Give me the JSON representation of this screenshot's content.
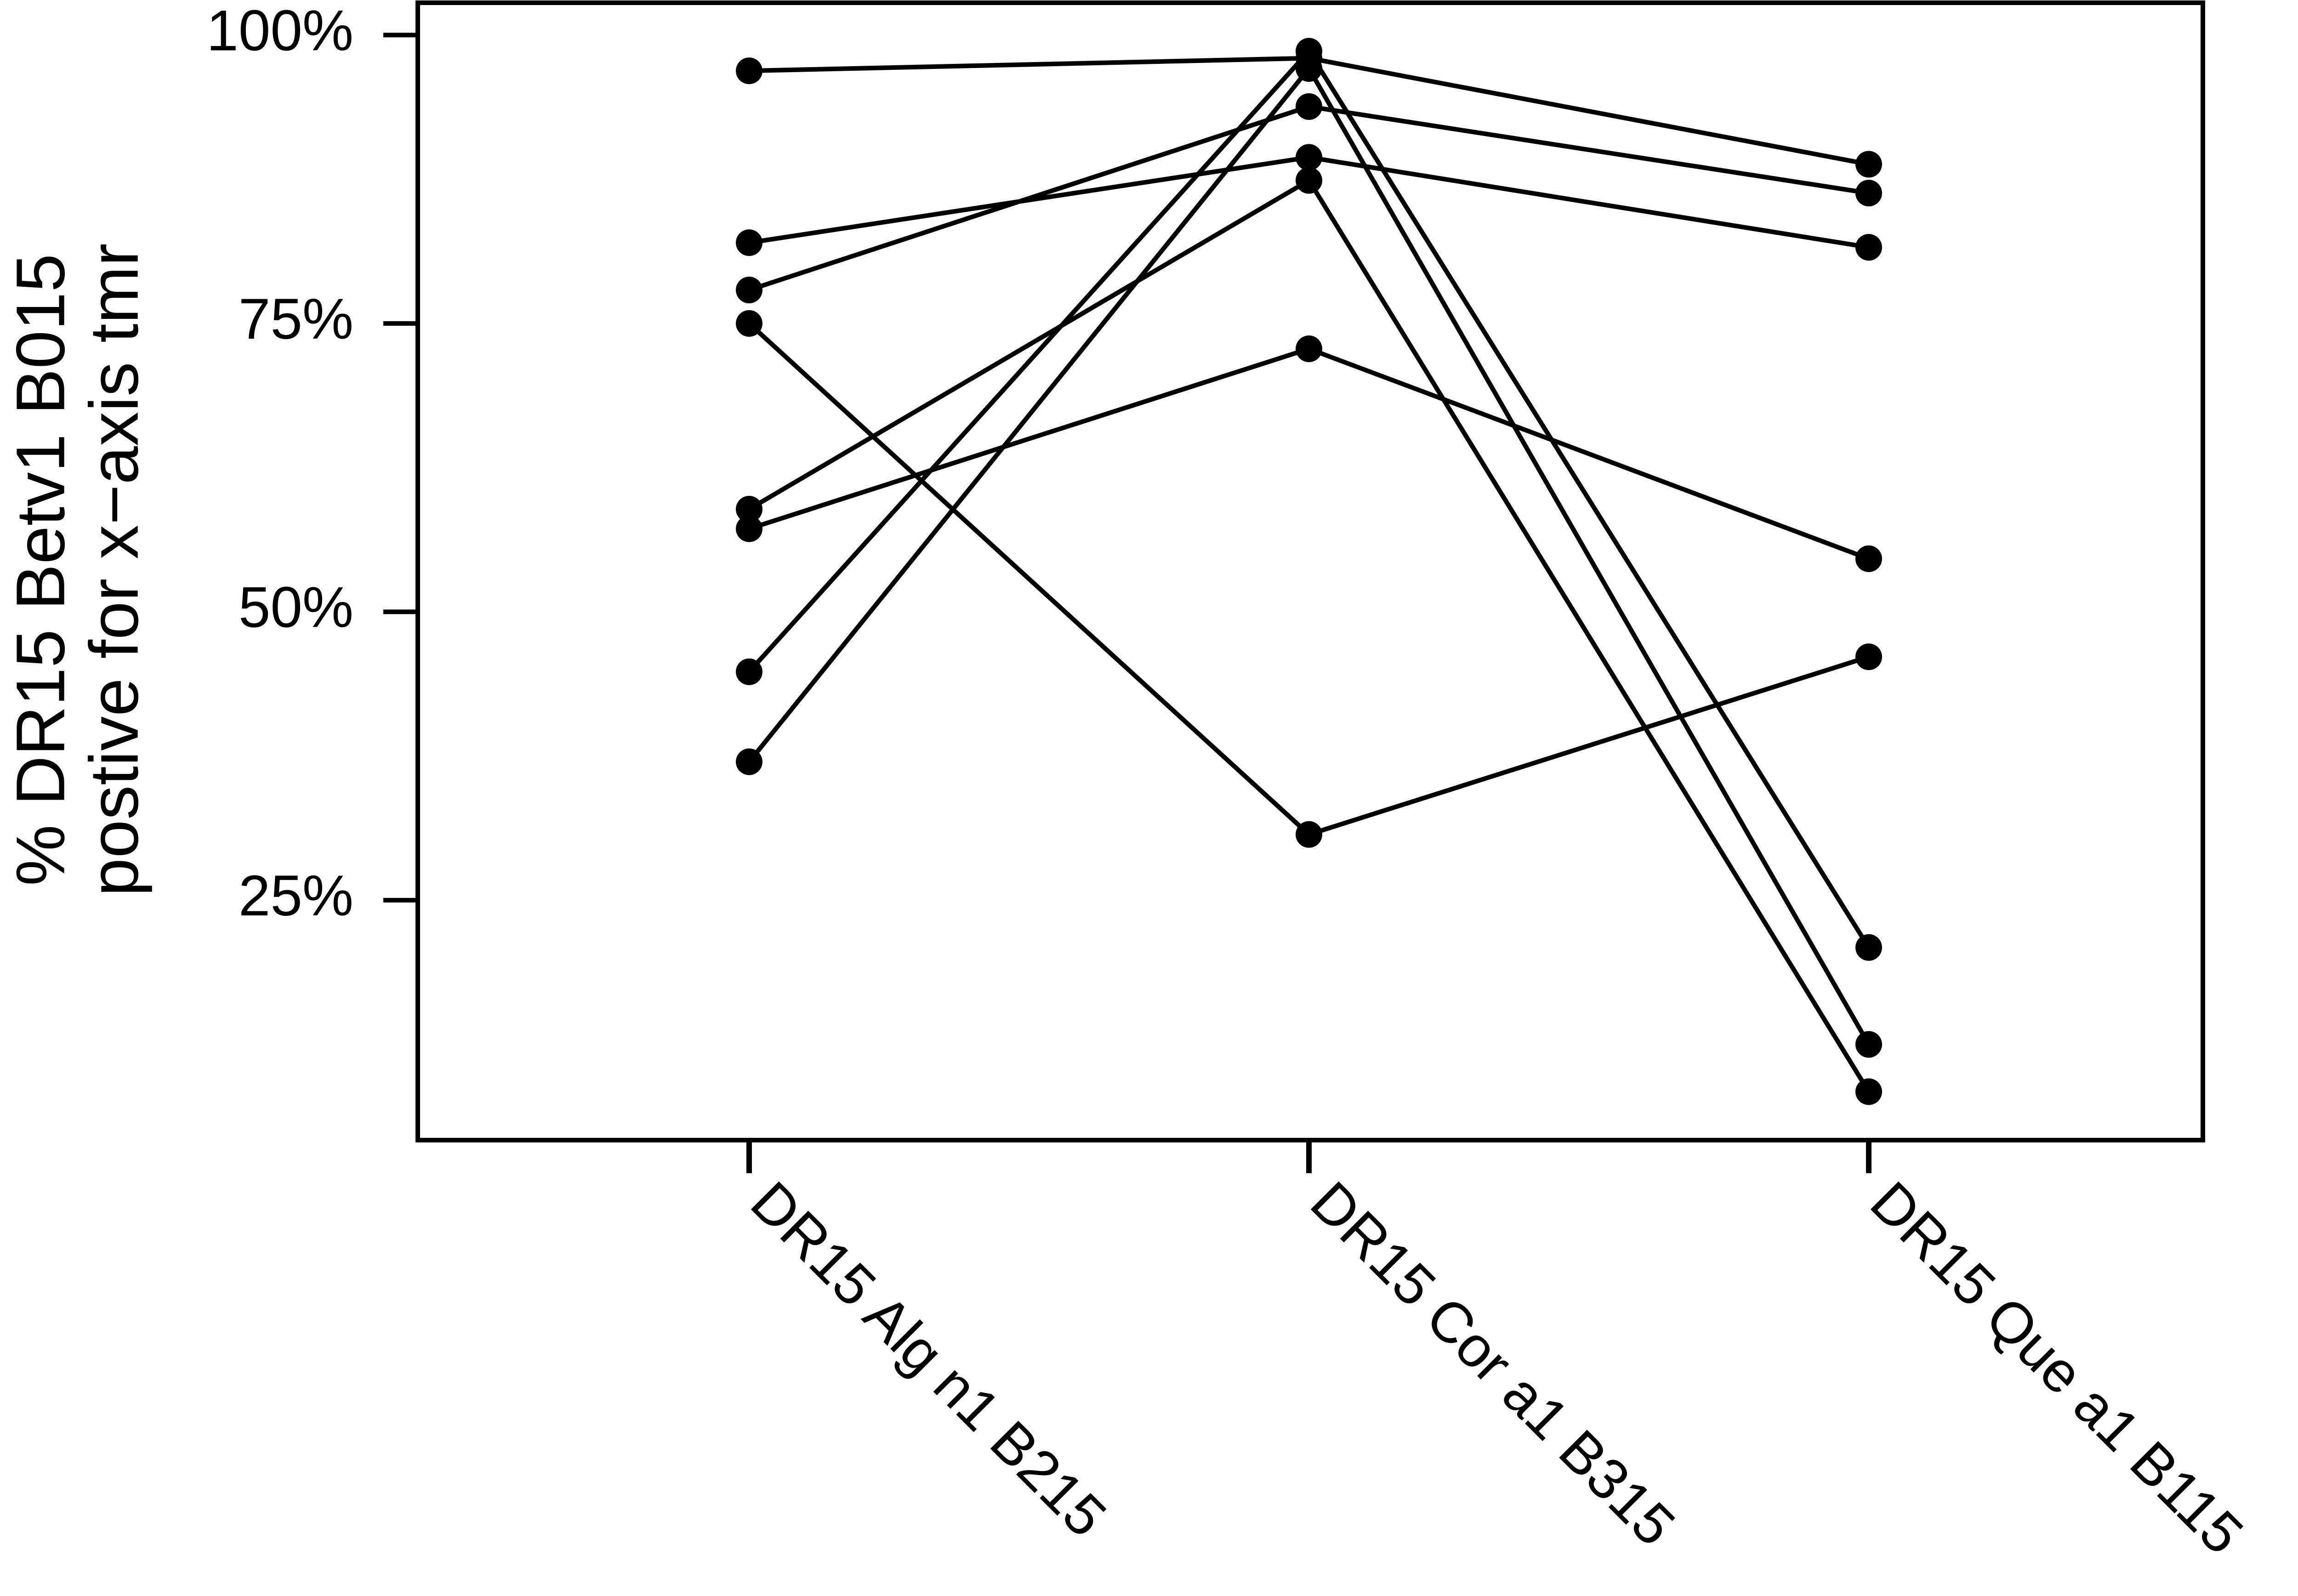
{
  "chart_data": {
    "type": "line",
    "ylabel": [
      "% DR15 Betv1 B015",
      "postive for x−axis tmr"
    ],
    "categories": [
      "DR15 Alg n1 B215",
      "DR15 Cor a1 B315",
      "DR15 Que a1 B115"
    ],
    "series": [
      {
        "color": "#000000",
        "values": [
          96.9,
          98.0,
          88.8
        ]
      },
      {
        "color": "#000000",
        "values": [
          82.0,
          89.4,
          81.6
        ]
      },
      {
        "color": "#000000",
        "values": [
          77.9,
          93.8,
          86.3
        ]
      },
      {
        "color": "#000000",
        "values": [
          75.0,
          30.7,
          46.1
        ]
      },
      {
        "color": "#000000",
        "values": [
          58.9,
          87.4,
          8.4
        ]
      },
      {
        "color": "#000000",
        "values": [
          57.2,
          72.8,
          54.6
        ]
      },
      {
        "color": "#000000",
        "values": [
          44.8,
          98.6,
          20.9
        ]
      },
      {
        "color": "#000000",
        "values": [
          37.0,
          97.1,
          12.5
        ]
      }
    ],
    "ylim": [
      4.2,
      102.8
    ],
    "yticks": [
      {
        "value": 25,
        "label": "25%"
      },
      {
        "value": 50,
        "label": "50%"
      },
      {
        "value": 75,
        "label": "75%"
      },
      {
        "value": 100,
        "label": "100%"
      }
    ],
    "grid": false
  }
}
